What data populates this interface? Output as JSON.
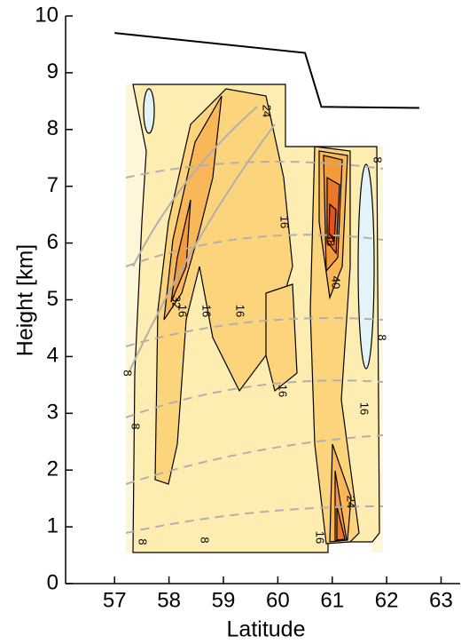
{
  "chart_data": {
    "type": "contour",
    "x_label": "Latitude",
    "y_label": "Height [km]",
    "xlim": [
      56.1,
      63.35
    ],
    "xticks": [
      57,
      58,
      59,
      60,
      61,
      62,
      63
    ],
    "ylim": [
      0,
      10
    ],
    "yticks": [
      0,
      1,
      2,
      3,
      4,
      5,
      6,
      7,
      8,
      9,
      10
    ],
    "levels": [
      0,
      8,
      16,
      24,
      32,
      40,
      48
    ],
    "level_colors": [
      "#fef6d8",
      "#fdedb0",
      "#fcd47c",
      "#f9b757",
      "#f39a3a",
      "#ec7728",
      "#e2521c"
    ],
    "negative_color": "#e3f4f8",
    "contour_labels": [
      8,
      8,
      8,
      8,
      8,
      16,
      16,
      16,
      16,
      16,
      16,
      24,
      24,
      32,
      40,
      48,
      16,
      8
    ],
    "line": {
      "x": [
        57,
        60.5,
        60.8,
        62.6
      ],
      "y": [
        9.7,
        9.35,
        8.4,
        8.38
      ],
      "color": "#000000"
    }
  }
}
